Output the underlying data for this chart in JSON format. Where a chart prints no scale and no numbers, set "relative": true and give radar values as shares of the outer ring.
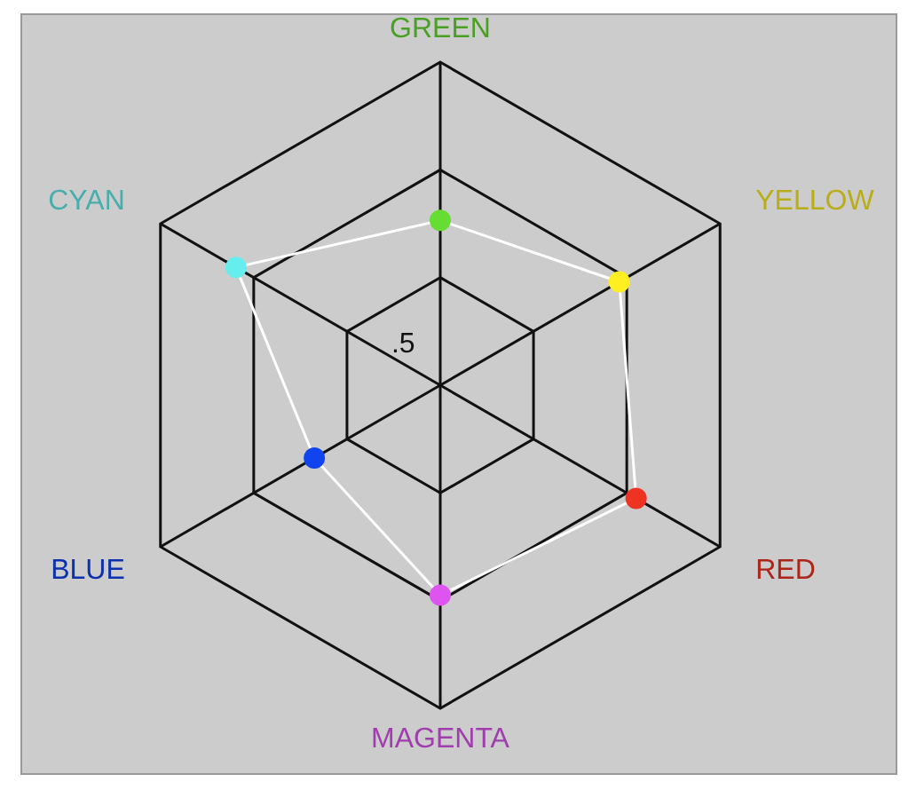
{
  "chart_data": {
    "type": "radar",
    "relative": true,
    "categories": [
      "GREEN",
      "YELLOW",
      "RED",
      "MAGENTA",
      "BLUE",
      "CYAN"
    ],
    "series": [
      {
        "color": "#ffffff",
        "colors": [
          "#66dd33",
          "#ffee22",
          "#ee3322",
          "#dd55ee",
          "#1144ee",
          "#66eeee"
        ],
        "values": [
          0.51,
          0.64,
          0.7,
          0.65,
          0.45,
          0.73
        ]
      }
    ],
    "annotations": [
      ".5"
    ],
    "marker": "circle",
    "grid": true
  }
}
